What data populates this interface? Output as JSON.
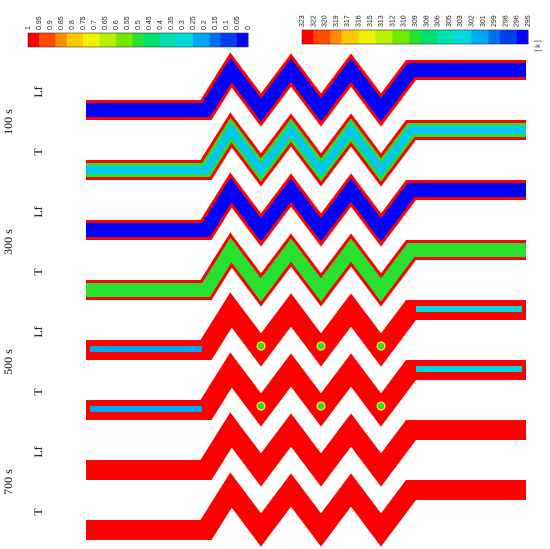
{
  "colorbars": [
    {
      "name": "liquid-fraction",
      "ticks": [
        "1",
        "0.95",
        "0.9",
        "0.85",
        "0.8",
        "0.75",
        "0.7",
        "0.65",
        "0.6",
        "0.55",
        "0.5",
        "0.45",
        "0.4",
        "0.35",
        "0.3",
        "0.25",
        "0.2",
        "0.15",
        "0.1",
        "0.05",
        "0"
      ],
      "unit": ""
    },
    {
      "name": "temperature",
      "ticks": [
        "323",
        "322",
        "320",
        "319",
        "317",
        "316",
        "315",
        "313",
        "312",
        "310",
        "309",
        "308",
        "306",
        "305",
        "303",
        "302",
        "301",
        "299",
        "298",
        "296",
        "295"
      ],
      "unit": "[ k ]"
    }
  ],
  "colormap": [
    "#ff0000",
    "#ff4a00",
    "#ff8c00",
    "#ffc800",
    "#f0f000",
    "#b8f000",
    "#70e800",
    "#28e030",
    "#00e070",
    "#00e0b0",
    "#00d8e0",
    "#00a8f0",
    "#0070f0",
    "#0040e8",
    "#0000ff"
  ],
  "time_groups": [
    "100 s",
    "300 s",
    "500 s",
    "700 s"
  ],
  "row_types": [
    "Lf",
    "T"
  ],
  "rows": [
    {
      "time": "100 s",
      "type": "Lf",
      "inner": "#0000ff",
      "wall": "#ff0000",
      "outer_fill": "#0000ff",
      "blobs": false
    },
    {
      "time": "100 s",
      "type": "T",
      "inner": "#00c8f0",
      "wall": "#ff0000",
      "outer_fill": "#28e030",
      "blobs": false
    },
    {
      "time": "300 s",
      "type": "Lf",
      "inner": "#0000ff",
      "wall": "#ff0000",
      "outer_fill": "#0000ff",
      "blobs": false
    },
    {
      "time": "300 s",
      "type": "T",
      "inner": "#28e030",
      "wall": "#ff0000",
      "outer_fill": "#28e030",
      "blobs": false
    },
    {
      "time": "500 s",
      "type": "Lf",
      "inner": "#ff0000",
      "wall": "#ff0000",
      "outer_fill": "#ff0000",
      "blobs": true
    },
    {
      "time": "500 s",
      "type": "T",
      "inner": "#ff0000",
      "wall": "#ff0000",
      "outer_fill": "#ff0000",
      "blobs": true
    },
    {
      "time": "700 s",
      "type": "Lf",
      "inner": "#ff0000",
      "wall": "#ff0000",
      "outer_fill": "#ff0000",
      "blobs": false
    },
    {
      "time": "700 s",
      "type": "T",
      "inner": "#ff0000",
      "wall": "#ff0000",
      "outer_fill": "#ff0000",
      "blobs": false
    }
  ]
}
